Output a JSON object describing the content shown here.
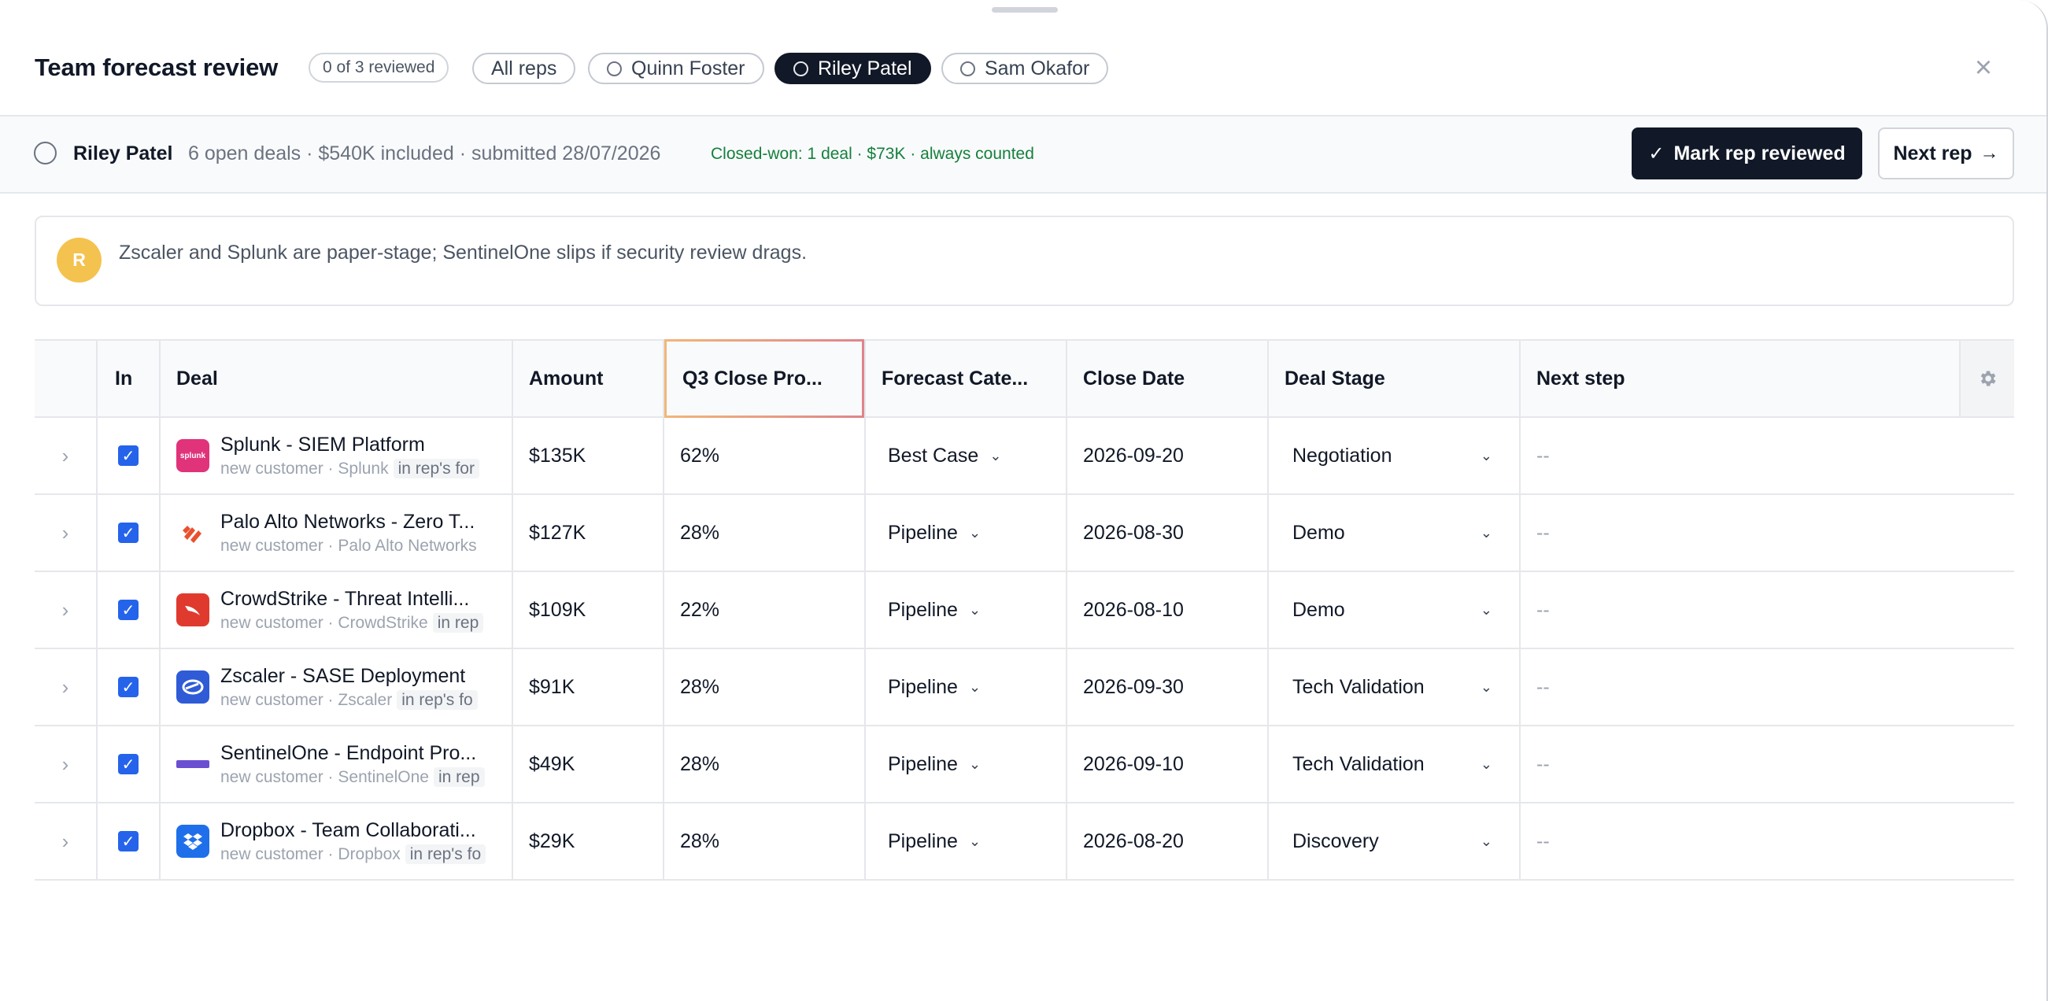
{
  "header": {
    "title": "Team forecast review",
    "reviewed_count": "0 of 3 reviewed",
    "filters": [
      {
        "label": "All reps",
        "has_ring": false,
        "active": false
      },
      {
        "label": "Quinn Foster",
        "has_ring": true,
        "active": false
      },
      {
        "label": "Riley Patel",
        "has_ring": true,
        "active": true
      },
      {
        "label": "Sam Okafor",
        "has_ring": true,
        "active": false
      }
    ],
    "close_icon": "×"
  },
  "rep": {
    "name": "Riley Patel",
    "meta": "6 open deals · $540K included · submitted 28/07/2026",
    "closed_won": "Closed-won: 1 deal · $73K · always counted",
    "mark_reviewed_label": "Mark rep reviewed",
    "next_rep_label": "Next rep"
  },
  "note": {
    "avatar_initial": "R",
    "text": "Zscaler and Splunk are paper-stage; SentinelOne slips if security review drags."
  },
  "table": {
    "columns": {
      "in": "In",
      "deal": "Deal",
      "amount": "Amount",
      "probability": "Q3 Close Pro...",
      "forecast": "Forecast Cate...",
      "close_date": "Close Date",
      "stage": "Deal Stage",
      "next_step": "Next step"
    },
    "rows": [
      {
        "name": "Splunk - SIEM Platform",
        "sub": "new customer · Splunk",
        "tag": "in rep's for",
        "logo_color": "#e0337a",
        "logo_text": "splunk",
        "amount": "$135K",
        "probability": "62%",
        "forecast": "Best Case",
        "close_date": "2026-09-20",
        "stage": "Negotiation",
        "next_step": "--"
      },
      {
        "name": "Palo Alto Networks - Zero T...",
        "sub": "new customer · Palo Alto Networks",
        "tag": "",
        "logo_color": "#ffffff",
        "logo_text": "",
        "amount": "$127K",
        "probability": "28%",
        "forecast": "Pipeline",
        "close_date": "2026-08-30",
        "stage": "Demo",
        "next_step": "--"
      },
      {
        "name": "CrowdStrike - Threat Intelli...",
        "sub": "new customer · CrowdStrike",
        "tag": "in rep",
        "logo_color": "#e03a2f",
        "logo_text": "",
        "amount": "$109K",
        "probability": "22%",
        "forecast": "Pipeline",
        "close_date": "2026-08-10",
        "stage": "Demo",
        "next_step": "--"
      },
      {
        "name": "Zscaler - SASE Deployment",
        "sub": "new customer · Zscaler",
        "tag": "in rep's fo",
        "logo_color": "#2f5bd6",
        "logo_text": "",
        "amount": "$91K",
        "probability": "28%",
        "forecast": "Pipeline",
        "close_date": "2026-09-30",
        "stage": "Tech Validation",
        "next_step": "--"
      },
      {
        "name": "SentinelOne - Endpoint Pro...",
        "sub": "new customer · SentinelOne",
        "tag": "in rep",
        "logo_color": "#6b4fd1",
        "logo_text": "",
        "amount": "$49K",
        "probability": "28%",
        "forecast": "Pipeline",
        "close_date": "2026-09-10",
        "stage": "Tech Validation",
        "next_step": "--"
      },
      {
        "name": "Dropbox - Team Collaborati...",
        "sub": "new customer · Dropbox",
        "tag": "in rep's fo",
        "logo_color": "#1f6feb",
        "logo_text": "",
        "amount": "$29K",
        "probability": "28%",
        "forecast": "Pipeline",
        "close_date": "2026-08-20",
        "stage": "Discovery",
        "next_step": "--"
      }
    ]
  }
}
